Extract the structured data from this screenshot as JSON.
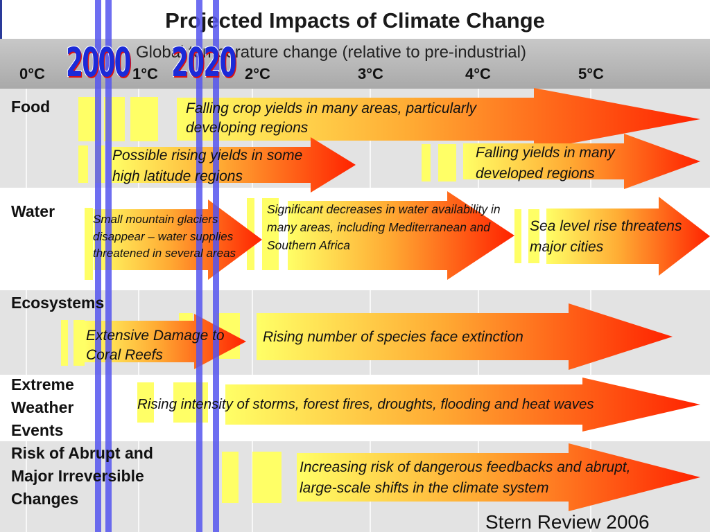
{
  "title": "Projected Impacts of Climate Change",
  "axis_title": "Global temperature change (relative to pre-industrial)",
  "ticks": [
    "0°C",
    "1°C",
    "2°C",
    "3°C",
    "4°C",
    "5°C"
  ],
  "year_markers": [
    "2000",
    "2020"
  ],
  "categories": [
    "Food",
    "Water",
    "Ecosystems",
    "Extreme Weather Events",
    "Risk of Abrupt and Major Irreversible Changes"
  ],
  "impacts": [
    "Falling crop yields in many areas, particularly developing regions",
    "Possible rising yields in some high latitude regions",
    "Falling yields in many developed regions",
    "Small mountain glaciers disappear – water supplies threatened in several areas",
    "Significant decreases in water availability in many areas, including Mediterranean and Southern Africa",
    "Sea level rise threatens major cities",
    "Extensive Damage to Coral Reefs",
    "Rising number of species face extinction",
    "Rising intensity of storms, forest fires, droughts, flooding and heat waves",
    "Increasing risk of dangerous feedbacks and abrupt, large-scale shifts in the climate system"
  ],
  "colors": {
    "arrow_start": "#ffff66",
    "arrow_mid": "#ffaa33",
    "arrow_end": "#ff2200",
    "year_line": "#5555ee",
    "year_text": "#1b2ad8"
  },
  "credit": "Stern Review 2006"
}
